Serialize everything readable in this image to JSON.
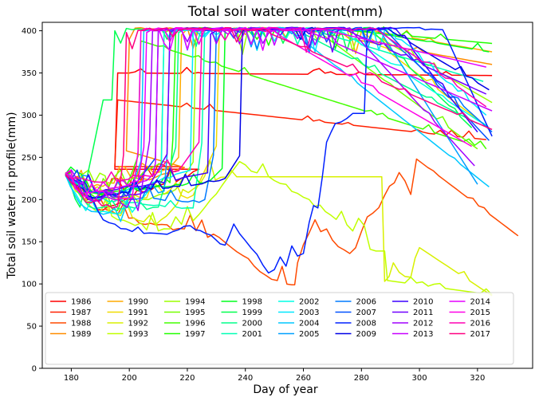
{
  "chart_data": {
    "type": "line",
    "title": "Total soil water content(mm)",
    "xlabel": "Day of year",
    "ylabel": "Total soil water in profile(mm)",
    "xlim": [
      170,
      339
    ],
    "ylim": [
      0,
      410
    ],
    "x_ticks": [
      180,
      200,
      220,
      240,
      260,
      280,
      300,
      320
    ],
    "y_ticks": [
      0,
      50,
      100,
      150,
      200,
      250,
      300,
      350,
      400
    ],
    "grid": false,
    "legend_position": "bottom",
    "legend_columns": 8,
    "series": [
      {
        "name": "1986",
        "color": "#ff0000",
        "start": [
          178,
          230
        ],
        "dips": [
          [
            189,
            188
          ],
          [
            224,
            236
          ]
        ],
        "recharge": [
          196,
          350
        ],
        "end": [
          325,
          347
        ],
        "wiggle": 14
      },
      {
        "name": "1987",
        "color": "#ff2000",
        "start": [
          178,
          232
        ],
        "dips": [
          [
            186,
            202
          ],
          [
            218,
            239
          ]
        ],
        "recharge": [
          196,
          318
        ],
        "end": [
          323,
          271
        ],
        "wiggle": 12
      },
      {
        "name": "1988",
        "color": "#ff4a00",
        "start": [
          178,
          230
        ],
        "dips": [
          [
            184,
            211
          ],
          [
            196,
            182
          ],
          [
            213,
            170
          ],
          [
            229,
            159
          ],
          [
            241,
            130
          ],
          [
            251,
            104
          ],
          [
            256,
            99
          ]
        ],
        "recharge": [
          258,
          125
        ],
        "end": [
          334,
          157
        ],
        "rises": [
          [
            264,
            176
          ],
          [
            276,
            136
          ],
          [
            280,
            162
          ],
          [
            288,
            205
          ],
          [
            293,
            232
          ],
          [
            297,
            206
          ],
          [
            299,
            248
          ]
        ],
        "wiggle": 15
      },
      {
        "name": "1989",
        "color": "#ff8c00",
        "start": [
          178,
          230
        ],
        "dips": [
          [
            187,
            208
          ],
          [
            219,
            238
          ]
        ],
        "recharge": [
          200,
          390
        ],
        "end": [
          325,
          360
        ],
        "wiggle": 10
      },
      {
        "name": "1990",
        "color": "#ffaa00",
        "start": [
          178,
          231
        ],
        "dips": [
          [
            187,
            215
          ],
          [
            214,
            238
          ]
        ],
        "recharge": [
          218,
          395
        ],
        "end": [
          325,
          375
        ],
        "wiggle": 10
      },
      {
        "name": "1991",
        "color": "#f0dc00",
        "start": [
          178,
          228
        ],
        "dips": [
          [
            186,
            203
          ],
          [
            222,
            205
          ]
        ],
        "recharge": [
          231,
          399
        ],
        "end": [
          320,
          295
        ],
        "wiggle": 11
      },
      {
        "name": "1992",
        "color": "#d8f000",
        "start": [
          178,
          230
        ],
        "dips": [
          [
            185,
            199
          ],
          [
            209,
            170
          ],
          [
            226,
            228
          ],
          [
            237,
            227
          ]
        ],
        "recharge": [
          288,
          103
        ],
        "end": [
          325,
          86
        ],
        "rises": [
          [
            291,
            125
          ],
          [
            297,
            108
          ],
          [
            300,
            143
          ]
        ],
        "wiggle": 14
      },
      {
        "name": "1993",
        "color": "#c0ff00",
        "start": [
          178,
          230
        ],
        "dips": [
          [
            186,
            194
          ],
          [
            206,
            164
          ],
          [
            222,
            175
          ],
          [
            238,
            245
          ],
          [
            254,
            218
          ],
          [
            262,
            200
          ],
          [
            275,
            170
          ],
          [
            285,
            139
          ]
        ],
        "recharge": [
          289,
          104
        ],
        "end": [
          325,
          87
        ],
        "wiggle": 13
      },
      {
        "name": "1994",
        "color": "#9cff00",
        "start": [
          178,
          230
        ],
        "dips": [
          [
            188,
            220
          ],
          [
            199,
            195
          ],
          [
            216,
            212
          ]
        ],
        "recharge": [
          223,
          398
        ],
        "end": [
          325,
          315
        ],
        "wiggle": 12
      },
      {
        "name": "1995",
        "color": "#76ff00",
        "start": [
          178,
          232
        ],
        "dips": [
          [
            185,
            197
          ],
          [
            205,
            233
          ]
        ],
        "recharge": [
          212,
          397
        ],
        "end": [
          320,
          260
        ],
        "wiggle": 12
      },
      {
        "name": "1996",
        "color": "#44ff00",
        "start": [
          178,
          230
        ],
        "dips": [
          [
            184,
            215
          ],
          [
            196,
            187
          ]
        ],
        "recharge": [
          204,
          388
        ],
        "end": [
          323,
          260
        ],
        "wiggle": 10
      },
      {
        "name": "1997",
        "color": "#22ff00",
        "start": [
          178,
          228
        ],
        "dips": [
          [
            187,
            208
          ],
          [
            214,
            220
          ]
        ],
        "recharge": [
          216,
          402
        ],
        "end": [
          325,
          385
        ],
        "wiggle": 9
      },
      {
        "name": "1998",
        "color": "#00ff1e",
        "start": [
          178,
          230
        ],
        "dips": [
          [
            189,
            207
          ],
          [
            228,
            223
          ]
        ],
        "recharge": [
          233,
          400
        ],
        "end": [
          324,
          375
        ],
        "wiggle": 9
      },
      {
        "name": "1999",
        "color": "#00ff4f",
        "start": [
          178,
          230
        ],
        "dips": [
          [
            183,
            191
          ],
          [
            191,
            318
          ]
        ],
        "recharge": [
          195,
          400
        ],
        "end": [
          318,
          285
        ],
        "wiggle": 10
      },
      {
        "name": "2000",
        "color": "#00ff8c",
        "start": [
          178,
          230
        ],
        "dips": [
          [
            186,
            192
          ],
          [
            210,
            191
          ]
        ],
        "recharge": [
          217,
          398
        ],
        "end": [
          320,
          290
        ],
        "wiggle": 10
      },
      {
        "name": "2001",
        "color": "#00ffb4",
        "start": [
          178,
          231
        ],
        "dips": [
          [
            187,
            203
          ],
          [
            222,
            190
          ]
        ],
        "recharge": [
          226,
          402
        ],
        "end": [
          322,
          340
        ],
        "wiggle": 10
      },
      {
        "name": "2002",
        "color": "#00ffe6",
        "start": [
          178,
          229
        ],
        "dips": [
          [
            185,
            187
          ],
          [
            201,
            185
          ]
        ],
        "recharge": [
          212,
          400
        ],
        "end": [
          324,
          285
        ],
        "wiggle": 10
      },
      {
        "name": "2003",
        "color": "#00e8ff",
        "start": [
          178,
          230
        ],
        "dips": [
          [
            186,
            200
          ],
          [
            216,
            230
          ]
        ],
        "recharge": [
          222,
          398
        ],
        "end": [
          323,
          300
        ],
        "wiggle": 10
      },
      {
        "name": "2004",
        "color": "#00c8ff",
        "start": [
          178,
          230
        ],
        "dips": [
          [
            183,
            195
          ],
          [
            197,
            174
          ]
        ],
        "recharge": [
          205,
          400
        ],
        "end": [
          324,
          215
        ],
        "wiggle": 11
      },
      {
        "name": "2005",
        "color": "#00a0ff",
        "start": [
          178,
          230
        ],
        "dips": [
          [
            188,
            210
          ],
          [
            212,
            210
          ]
        ],
        "recharge": [
          214,
          400
        ],
        "end": [
          320,
          218
        ],
        "wiggle": 10
      },
      {
        "name": "2006",
        "color": "#007aff",
        "start": [
          178,
          229
        ],
        "dips": [
          [
            185,
            204
          ],
          [
            226,
            200
          ]
        ],
        "recharge": [
          230,
          400
        ],
        "end": [
          325,
          280
        ],
        "wiggle": 10
      },
      {
        "name": "2007",
        "color": "#0050ff",
        "start": [
          178,
          230
        ],
        "dips": [
          [
            184,
            215
          ],
          [
            199,
            204
          ]
        ],
        "recharge": [
          210,
          400
        ],
        "end": [
          324,
          270
        ],
        "wiggle": 10
      },
      {
        "name": "2008",
        "color": "#0020ff",
        "start": [
          178,
          230
        ],
        "dips": [
          [
            185,
            219
          ],
          [
            191,
            176
          ],
          [
            199,
            165
          ],
          [
            209,
            160
          ],
          [
            215,
            162
          ],
          [
            221,
            169
          ],
          [
            228,
            158
          ],
          [
            233,
            146
          ],
          [
            236,
            171
          ],
          [
            244,
            135
          ],
          [
            248,
            113
          ],
          [
            250,
            117
          ],
          [
            252,
            132
          ],
          [
            254,
            121
          ],
          [
            256,
            145
          ],
          [
            258,
            133
          ],
          [
            260,
            136
          ],
          [
            262,
            173
          ],
          [
            265,
            190
          ],
          [
            268,
            268
          ],
          [
            271,
            290
          ],
          [
            277,
            302
          ]
        ],
        "recharge": [
          282,
          400
        ],
        "end": [
          325,
          275
        ],
        "wiggle": 8
      },
      {
        "name": "2009",
        "color": "#0000e6",
        "start": [
          178,
          230
        ],
        "dips": [
          [
            186,
            204
          ],
          [
            233,
            225
          ]
        ],
        "recharge": [
          239,
          400
        ],
        "end": [
          324,
          330
        ],
        "wiggle": 10
      },
      {
        "name": "2010",
        "color": "#3c00ff",
        "start": [
          178,
          230
        ],
        "dips": [
          [
            188,
            211
          ],
          [
            220,
            227
          ]
        ],
        "recharge": [
          228,
          396
        ],
        "end": [
          320,
          280
        ],
        "wiggle": 10
      },
      {
        "name": "2011",
        "color": "#7000ff",
        "start": [
          178,
          229
        ],
        "dips": [
          [
            186,
            200
          ],
          [
            206,
            211
          ]
        ],
        "recharge": [
          214,
          398
        ],
        "end": [
          323,
          325
        ],
        "wiggle": 10
      },
      {
        "name": "2012",
        "color": "#a000ff",
        "start": [
          178,
          230
        ],
        "dips": [
          [
            184,
            206
          ],
          [
            203,
            187
          ]
        ],
        "recharge": [
          208,
          400
        ],
        "end": [
          319,
          240
        ],
        "wiggle": 10
      },
      {
        "name": "2013",
        "color": "#c800ff",
        "start": [
          178,
          230
        ],
        "dips": [
          [
            188,
            198
          ],
          [
            208,
            229
          ]
        ],
        "recharge": [
          210,
          400
        ],
        "end": [
          325,
          305
        ],
        "wiggle": 10
      },
      {
        "name": "2014",
        "color": "#e600ff",
        "start": [
          178,
          230
        ],
        "dips": [
          [
            183,
            209
          ],
          [
            203,
            222
          ]
        ],
        "recharge": [
          206,
          398
        ],
        "end": [
          323,
          357
        ],
        "wiggle": 10
      },
      {
        "name": "2015",
        "color": "#ff00e6",
        "start": [
          178,
          231
        ],
        "dips": [
          [
            185,
            203
          ],
          [
            201,
            202
          ]
        ],
        "recharge": [
          204,
          400
        ],
        "end": [
          318,
          263
        ],
        "wiggle": 10
      },
      {
        "name": "2016",
        "color": "#ff00b4",
        "start": [
          178,
          230
        ],
        "dips": [
          [
            188,
            221
          ],
          [
            217,
            234
          ]
        ],
        "recharge": [
          225,
          399
        ],
        "end": [
          323,
          310
        ],
        "wiggle": 10
      },
      {
        "name": "2017",
        "color": "#ff0080",
        "start": [
          178,
          230
        ],
        "dips": [
          [
            185,
            197
          ],
          [
            196,
            192
          ]
        ],
        "recharge": [
          199,
          398
        ],
        "end": [
          325,
          283
        ],
        "wiggle": 10
      }
    ]
  }
}
